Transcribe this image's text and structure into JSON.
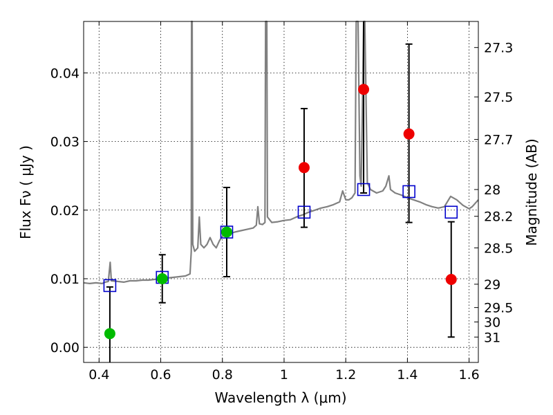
{
  "chart_data": {
    "type": "scatter",
    "xlabel": "Wavelength  λ (μm)",
    "ylabel": "Flux  Fν  ( μJy )",
    "ylabel_right": "Magnitude (AB)",
    "xlim": [
      0.35,
      1.63
    ],
    "ylim": [
      -0.0022,
      0.0475
    ],
    "x_ticks": [
      0.4,
      0.6,
      0.8,
      1.0,
      1.2,
      1.4,
      1.6
    ],
    "x_tick_labels": [
      "0.4",
      "0.6",
      "0.8",
      "1",
      "1.2",
      "1.4",
      "1.6"
    ],
    "y_ticks": [
      0.0,
      0.01,
      0.02,
      0.03,
      0.04
    ],
    "y_tick_labels": [
      "0.00",
      "0.01",
      "0.02",
      "0.03",
      "0.04"
    ],
    "right_ticks": [
      {
        "label": "27.3",
        "flux": 0.0437
      },
      {
        "label": "27.5",
        "flux": 0.0365
      },
      {
        "label": "27.7",
        "flux": 0.0303
      },
      {
        "label": "28",
        "flux": 0.023
      },
      {
        "label": "28.2",
        "flux": 0.0191
      },
      {
        "label": "28.5",
        "flux": 0.0145
      },
      {
        "label": "29",
        "flux": 0.0092
      },
      {
        "label": "29.5",
        "flux": 0.0058
      },
      {
        "label": "30",
        "flux": 0.0037
      },
      {
        "label": "31",
        "flux": 0.0015
      }
    ],
    "grid": true,
    "colors": {
      "spectrum": "#808080",
      "model": "#0000cc",
      "detected": "#00bb00",
      "undetected": "#ee0000",
      "errorbar": "#000000"
    },
    "series": [
      {
        "kind": "spectrum",
        "points": [
          [
            0.35,
            0.0094
          ],
          [
            0.37,
            0.0093
          ],
          [
            0.39,
            0.0094
          ],
          [
            0.41,
            0.0093
          ],
          [
            0.42,
            0.0095
          ],
          [
            0.43,
            0.0096
          ],
          [
            0.436,
            0.0124
          ],
          [
            0.44,
            0.0097
          ],
          [
            0.46,
            0.0096
          ],
          [
            0.48,
            0.0095
          ],
          [
            0.5,
            0.0097
          ],
          [
            0.52,
            0.0097
          ],
          [
            0.54,
            0.0098
          ],
          [
            0.56,
            0.0098
          ],
          [
            0.58,
            0.0099
          ],
          [
            0.6,
            0.01
          ],
          [
            0.62,
            0.0101
          ],
          [
            0.64,
            0.0102
          ],
          [
            0.66,
            0.0103
          ],
          [
            0.68,
            0.0104
          ],
          [
            0.695,
            0.0107
          ],
          [
            0.699,
            0.014
          ],
          [
            0.7,
            0.0475
          ],
          [
            0.702,
            0.0475
          ],
          [
            0.704,
            0.015
          ],
          [
            0.71,
            0.014
          ],
          [
            0.72,
            0.0145
          ],
          [
            0.725,
            0.019
          ],
          [
            0.73,
            0.015
          ],
          [
            0.74,
            0.0145
          ],
          [
            0.75,
            0.015
          ],
          [
            0.76,
            0.016
          ],
          [
            0.77,
            0.015
          ],
          [
            0.78,
            0.0145
          ],
          [
            0.79,
            0.0155
          ],
          [
            0.8,
            0.0162
          ],
          [
            0.82,
            0.0165
          ],
          [
            0.84,
            0.0168
          ],
          [
            0.86,
            0.017
          ],
          [
            0.88,
            0.0172
          ],
          [
            0.9,
            0.0174
          ],
          [
            0.91,
            0.0178
          ],
          [
            0.915,
            0.0205
          ],
          [
            0.92,
            0.018
          ],
          [
            0.93,
            0.0179
          ],
          [
            0.938,
            0.0182
          ],
          [
            0.94,
            0.0475
          ],
          [
            0.944,
            0.0475
          ],
          [
            0.946,
            0.019
          ],
          [
            0.96,
            0.0182
          ],
          [
            0.98,
            0.0183
          ],
          [
            1.0,
            0.0185
          ],
          [
            1.02,
            0.0186
          ],
          [
            1.04,
            0.019
          ],
          [
            1.06,
            0.0193
          ],
          [
            1.08,
            0.0197
          ],
          [
            1.1,
            0.02
          ],
          [
            1.12,
            0.0203
          ],
          [
            1.14,
            0.0205
          ],
          [
            1.16,
            0.0208
          ],
          [
            1.18,
            0.0212
          ],
          [
            1.19,
            0.0228
          ],
          [
            1.2,
            0.0215
          ],
          [
            1.21,
            0.0215
          ],
          [
            1.22,
            0.0218
          ],
          [
            1.23,
            0.0225
          ],
          [
            1.234,
            0.0475
          ],
          [
            1.24,
            0.0475
          ],
          [
            1.246,
            0.025
          ],
          [
            1.25,
            0.0235
          ],
          [
            1.258,
            0.0475
          ],
          [
            1.262,
            0.0475
          ],
          [
            1.27,
            0.024
          ],
          [
            1.28,
            0.023
          ],
          [
            1.3,
            0.0225
          ],
          [
            1.32,
            0.0228
          ],
          [
            1.33,
            0.0235
          ],
          [
            1.34,
            0.025
          ],
          [
            1.345,
            0.023
          ],
          [
            1.36,
            0.0225
          ],
          [
            1.38,
            0.0222
          ],
          [
            1.4,
            0.0218
          ],
          [
            1.42,
            0.0215
          ],
          [
            1.44,
            0.0212
          ],
          [
            1.46,
            0.0208
          ],
          [
            1.48,
            0.0205
          ],
          [
            1.5,
            0.0203
          ],
          [
            1.52,
            0.0205
          ],
          [
            1.54,
            0.022
          ],
          [
            1.56,
            0.0215
          ],
          [
            1.58,
            0.0207
          ],
          [
            1.6,
            0.0202
          ],
          [
            1.61,
            0.0205
          ],
          [
            1.63,
            0.0215
          ]
        ]
      },
      {
        "kind": "model_squares",
        "points": [
          {
            "x": 0.435,
            "y": 0.009
          },
          {
            "x": 0.605,
            "y": 0.0102
          },
          {
            "x": 0.814,
            "y": 0.0168
          },
          {
            "x": 1.065,
            "y": 0.0197
          },
          {
            "x": 1.258,
            "y": 0.023
          },
          {
            "x": 1.405,
            "y": 0.0227
          },
          {
            "x": 1.542,
            "y": 0.0197
          }
        ]
      },
      {
        "kind": "detected",
        "points": [
          {
            "x": 0.435,
            "y": 0.002,
            "err_low": -0.0022,
            "err_high": 0.0088
          },
          {
            "x": 0.605,
            "y": 0.01,
            "err_low": 0.0065,
            "err_high": 0.0135
          },
          {
            "x": 0.814,
            "y": 0.0168,
            "err_low": 0.0103,
            "err_high": 0.0233
          }
        ]
      },
      {
        "kind": "undetected",
        "points": [
          {
            "x": 1.065,
            "y": 0.0262,
            "err_low": 0.0175,
            "err_high": 0.0348
          },
          {
            "x": 1.258,
            "y": 0.0376,
            "err_low": 0.0225,
            "err_high": 0.0475
          },
          {
            "x": 1.405,
            "y": 0.0311,
            "err_low": 0.0182,
            "err_high": 0.0442
          },
          {
            "x": 1.542,
            "y": 0.0099,
            "err_low": 0.0015,
            "err_high": 0.0183
          }
        ]
      }
    ]
  }
}
